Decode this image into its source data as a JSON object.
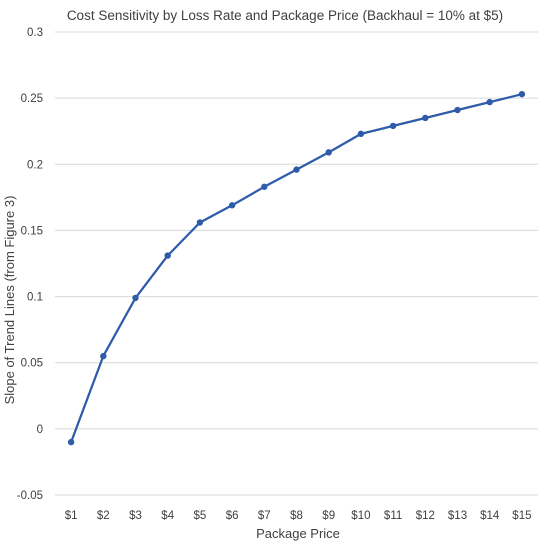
{
  "chart_data": {
    "type": "line",
    "title": "Cost Sensitivity by Loss Rate and Package Price (Backhaul = 10% at $5)",
    "xlabel": "Package Price",
    "ylabel": "Slope of Trend Lines (from Figure 3)",
    "categories": [
      "$1",
      "$2",
      "$3",
      "$4",
      "$5",
      "$6",
      "$7",
      "$8",
      "$9",
      "$10",
      "$11",
      "$12",
      "$13",
      "$14",
      "$15"
    ],
    "series": [
      {
        "values": [
          -0.01,
          0.055,
          0.099,
          0.131,
          0.156,
          0.169,
          0.183,
          0.196,
          0.209,
          0.223,
          0.229,
          0.235,
          0.241,
          0.247,
          0.253
        ],
        "color": "#2e5caa"
      }
    ],
    "ylim": [
      -0.05,
      0.3
    ],
    "yticks": [
      "-0.05",
      "0",
      "0.05",
      "0.1",
      "0.15",
      "0.2",
      "0.25",
      "0.3"
    ],
    "ytick_values": [
      -0.05,
      0,
      0.05,
      0.1,
      0.15,
      0.2,
      0.25,
      0.3
    ],
    "grid": true,
    "legend": "none"
  }
}
